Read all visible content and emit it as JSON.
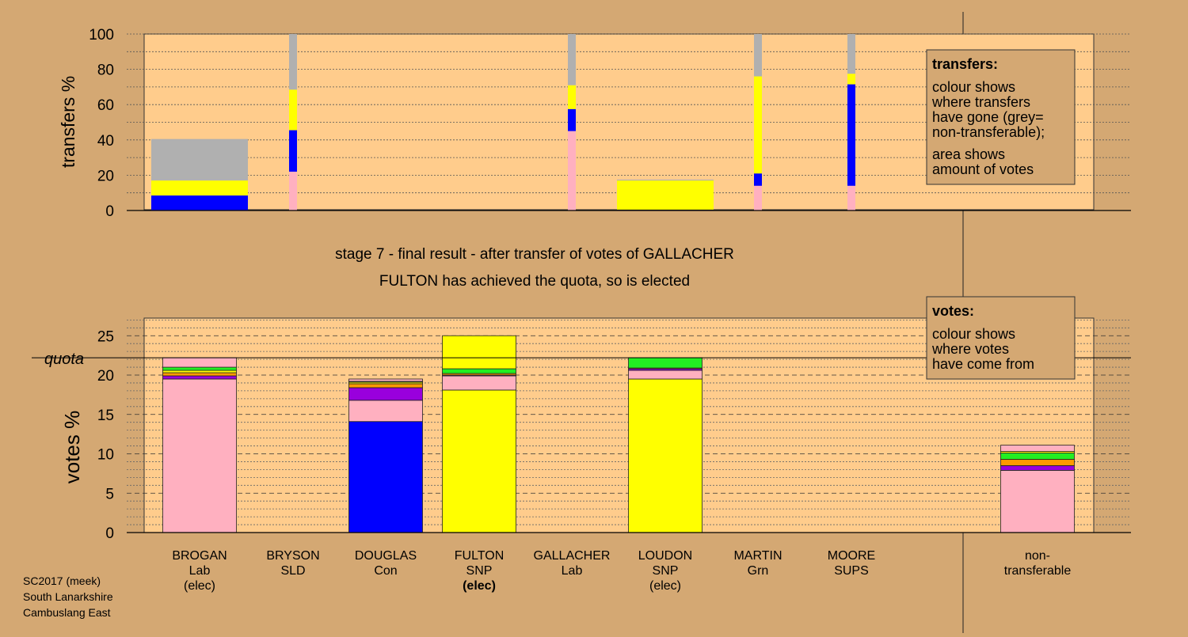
{
  "colors": {
    "background": "#d4a873",
    "plot_fill": "#ffcc8c",
    "Lab": "#ffb0c0",
    "SNP": "#ffff00",
    "Con": "#0000ff",
    "Grn": "#22ee22",
    "SLD": "#ff9900",
    "SUPS": "#9900dd",
    "nontransferable": "#b0b0b0"
  },
  "headings": {
    "stage": "stage 7 - final result - after transfer of votes of GALLACHER",
    "elected": "FULTON has achieved the quota, so is elected"
  },
  "transfers_legend": {
    "title": "transfers:",
    "lines1": [
      "colour shows",
      "where transfers",
      "have gone (grey=",
      "non-transferable);"
    ],
    "lines2": [
      "area shows",
      "amount of votes"
    ]
  },
  "votes_legend": {
    "title": "votes:",
    "lines": [
      "colour shows",
      "where votes",
      "have come from"
    ]
  },
  "footer": [
    "SC2017 (meek)",
    "South Lanarkshire",
    "Cambuslang East"
  ],
  "candidates": [
    {
      "name": "BROGAN",
      "party": "Lab",
      "status": "(elec)",
      "bold_status": false
    },
    {
      "name": "BRYSON",
      "party": "SLD",
      "status": "",
      "bold_status": false
    },
    {
      "name": "DOUGLAS",
      "party": "Con",
      "status": "",
      "bold_status": false
    },
    {
      "name": "FULTON",
      "party": "SNP",
      "status": "(elec)",
      "bold_status": true
    },
    {
      "name": "GALLACHER",
      "party": "Lab",
      "status": "",
      "bold_status": false
    },
    {
      "name": "LOUDON",
      "party": "SNP",
      "status": "(elec)",
      "bold_status": false
    },
    {
      "name": "MARTIN",
      "party": "Grn",
      "status": "",
      "bold_status": false
    },
    {
      "name": "MOORE",
      "party": "SUPS",
      "status": "",
      "bold_status": false
    },
    {
      "name": "non-",
      "party": "transferable",
      "status": "",
      "bold_status": false
    }
  ],
  "chart_data": [
    {
      "type": "bar",
      "subtype": "stacked-transfers",
      "ylabel": "transfers %",
      "ylim": [
        0,
        100
      ],
      "yticks": [
        0,
        20,
        40,
        60,
        80,
        100
      ],
      "bars": [
        {
          "candidate": "BROGAN",
          "width": "wide",
          "segments": [
            {
              "party": "Con",
              "from": 0,
              "to": 8.5
            },
            {
              "party": "SNP",
              "from": 8.5,
              "to": 17
            },
            {
              "party": "nontransferable",
              "from": 17,
              "to": 40.5
            }
          ]
        },
        {
          "candidate": "BRYSON",
          "width": "thin",
          "segments": [
            {
              "party": "Lab",
              "from": 0,
              "to": 22
            },
            {
              "party": "Con",
              "from": 22,
              "to": 45.5
            },
            {
              "party": "SNP",
              "from": 45.5,
              "to": 68.5
            },
            {
              "party": "nontransferable",
              "from": 68.5,
              "to": 100
            }
          ]
        },
        {
          "candidate": "GALLACHER",
          "width": "thin",
          "segments": [
            {
              "party": "Lab",
              "from": 0,
              "to": 45
            },
            {
              "party": "Con",
              "from": 45,
              "to": 57.5
            },
            {
              "party": "SNP",
              "from": 57.5,
              "to": 71
            },
            {
              "party": "nontransferable",
              "from": 71,
              "to": 100
            }
          ]
        },
        {
          "candidate": "LOUDON",
          "width": "wide",
          "segments": [
            {
              "party": "SNP",
              "from": 0.5,
              "to": 17
            },
            {
              "party": "nontransferable",
              "from": 17,
              "to": 17.5
            }
          ]
        },
        {
          "candidate": "MARTIN",
          "width": "thin",
          "segments": [
            {
              "party": "Lab",
              "from": 0,
              "to": 14
            },
            {
              "party": "Con",
              "from": 14,
              "to": 21
            },
            {
              "party": "SNP",
              "from": 21,
              "to": 76
            },
            {
              "party": "nontransferable",
              "from": 76,
              "to": 100
            }
          ]
        },
        {
          "candidate": "MOORE",
          "width": "thin",
          "segments": [
            {
              "party": "Lab",
              "from": 0,
              "to": 14
            },
            {
              "party": "Con",
              "from": 14,
              "to": 71.5
            },
            {
              "party": "SNP",
              "from": 71.5,
              "to": 77.5
            },
            {
              "party": "nontransferable",
              "from": 77.5,
              "to": 100
            }
          ]
        }
      ]
    },
    {
      "type": "bar",
      "subtype": "stacked-votes",
      "ylabel": "votes %",
      "ylim": [
        0,
        27.5
      ],
      "yticks": [
        0,
        5,
        10,
        15,
        20,
        25
      ],
      "quota": 22.2,
      "quota_label": "quota",
      "bars": [
        {
          "candidate": "BROGAN",
          "segments": [
            {
              "party": "Lab",
              "value": 19.5
            },
            {
              "party": "SUPS",
              "value": 0.4
            },
            {
              "party": "SLD",
              "value": 0.4
            },
            {
              "party": "SNP",
              "value": 0.3
            },
            {
              "party": "Grn",
              "value": 0.4
            },
            {
              "party": "Lab",
              "value": 1.2
            }
          ]
        },
        {
          "candidate": "DOUGLAS",
          "segments": [
            {
              "party": "Con",
              "value": 14.1
            },
            {
              "party": "Lab",
              "value": 2.7
            },
            {
              "party": "SUPS",
              "value": 1.6
            },
            {
              "party": "SLD",
              "value": 0.5
            },
            {
              "party": "SNP",
              "value": 0.2
            },
            {
              "party": "Grn",
              "value": 0.1
            },
            {
              "party": "Lab",
              "value": 0.3
            }
          ]
        },
        {
          "candidate": "FULTON",
          "segments": [
            {
              "party": "SNP",
              "value": 18.1
            },
            {
              "party": "Lab",
              "value": 1.8
            },
            {
              "party": "SUPS",
              "value": 0.1
            },
            {
              "party": "SLD",
              "value": 0.2
            },
            {
              "party": "Grn",
              "value": 0.6
            },
            {
              "party": "SNP",
              "value": 4.2
            }
          ]
        },
        {
          "candidate": "LOUDON",
          "segments": [
            {
              "party": "SNP",
              "value": 19.5
            },
            {
              "party": "Lab",
              "value": 1.1
            },
            {
              "party": "SUPS",
              "value": 0.2
            },
            {
              "party": "SLD",
              "value": 0.1
            },
            {
              "party": "Grn",
              "value": 1.3
            }
          ]
        },
        {
          "candidate": "non-transferable",
          "segments": [
            {
              "party": "Lab",
              "value": 7.9
            },
            {
              "party": "SUPS",
              "value": 0.6
            },
            {
              "party": "SLD",
              "value": 0.8
            },
            {
              "party": "Grn",
              "value": 0.8
            },
            {
              "party": "SNP",
              "value": 0.2
            },
            {
              "party": "Lab",
              "value": 0.8
            }
          ]
        }
      ]
    }
  ]
}
